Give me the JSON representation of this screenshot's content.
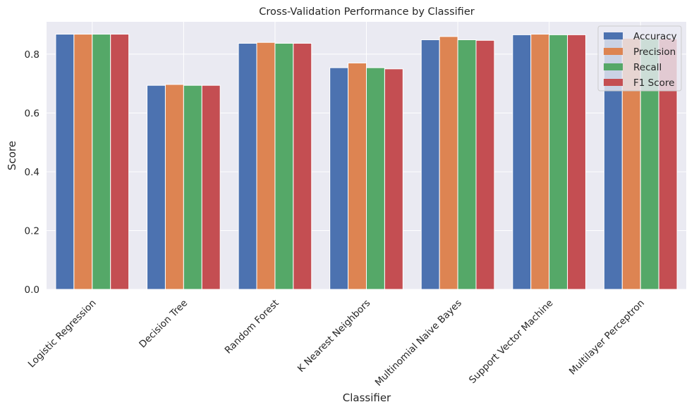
{
  "chart_data": {
    "type": "bar",
    "title": "Cross-Validation Performance by Classifier",
    "xlabel": "Classifier",
    "ylabel": "Score",
    "ylim": [
      0,
      0.91
    ],
    "yticks": [
      0.0,
      0.2,
      0.4,
      0.6,
      0.8
    ],
    "ytick_labels": [
      "0.0",
      "0.2",
      "0.4",
      "0.6",
      "0.8"
    ],
    "grid": true,
    "legend_position": "top-right",
    "categories": [
      "Logistic Regression",
      "Decision Tree",
      "Random Forest",
      "K Nearest Neighbors",
      "Multinomial Naive Bayes",
      "Support Vector Machine",
      "Multilayer Perceptron"
    ],
    "series": [
      {
        "name": "Accuracy",
        "color": "#4c72b0",
        "values": [
          0.868,
          0.694,
          0.837,
          0.754,
          0.849,
          0.866,
          0.852
        ]
      },
      {
        "name": "Precision",
        "color": "#dd8452",
        "values": [
          0.868,
          0.697,
          0.84,
          0.77,
          0.86,
          0.868,
          0.854
        ]
      },
      {
        "name": "Recall",
        "color": "#55a868",
        "values": [
          0.868,
          0.694,
          0.837,
          0.754,
          0.849,
          0.866,
          0.852
        ]
      },
      {
        "name": "F1 Score",
        "color": "#c44e52",
        "values": [
          0.868,
          0.694,
          0.837,
          0.75,
          0.847,
          0.866,
          0.852
        ]
      }
    ],
    "style": {
      "plot_background": "#eaeaf2",
      "grid_color": "#ffffff",
      "text_color": "#262626"
    }
  }
}
